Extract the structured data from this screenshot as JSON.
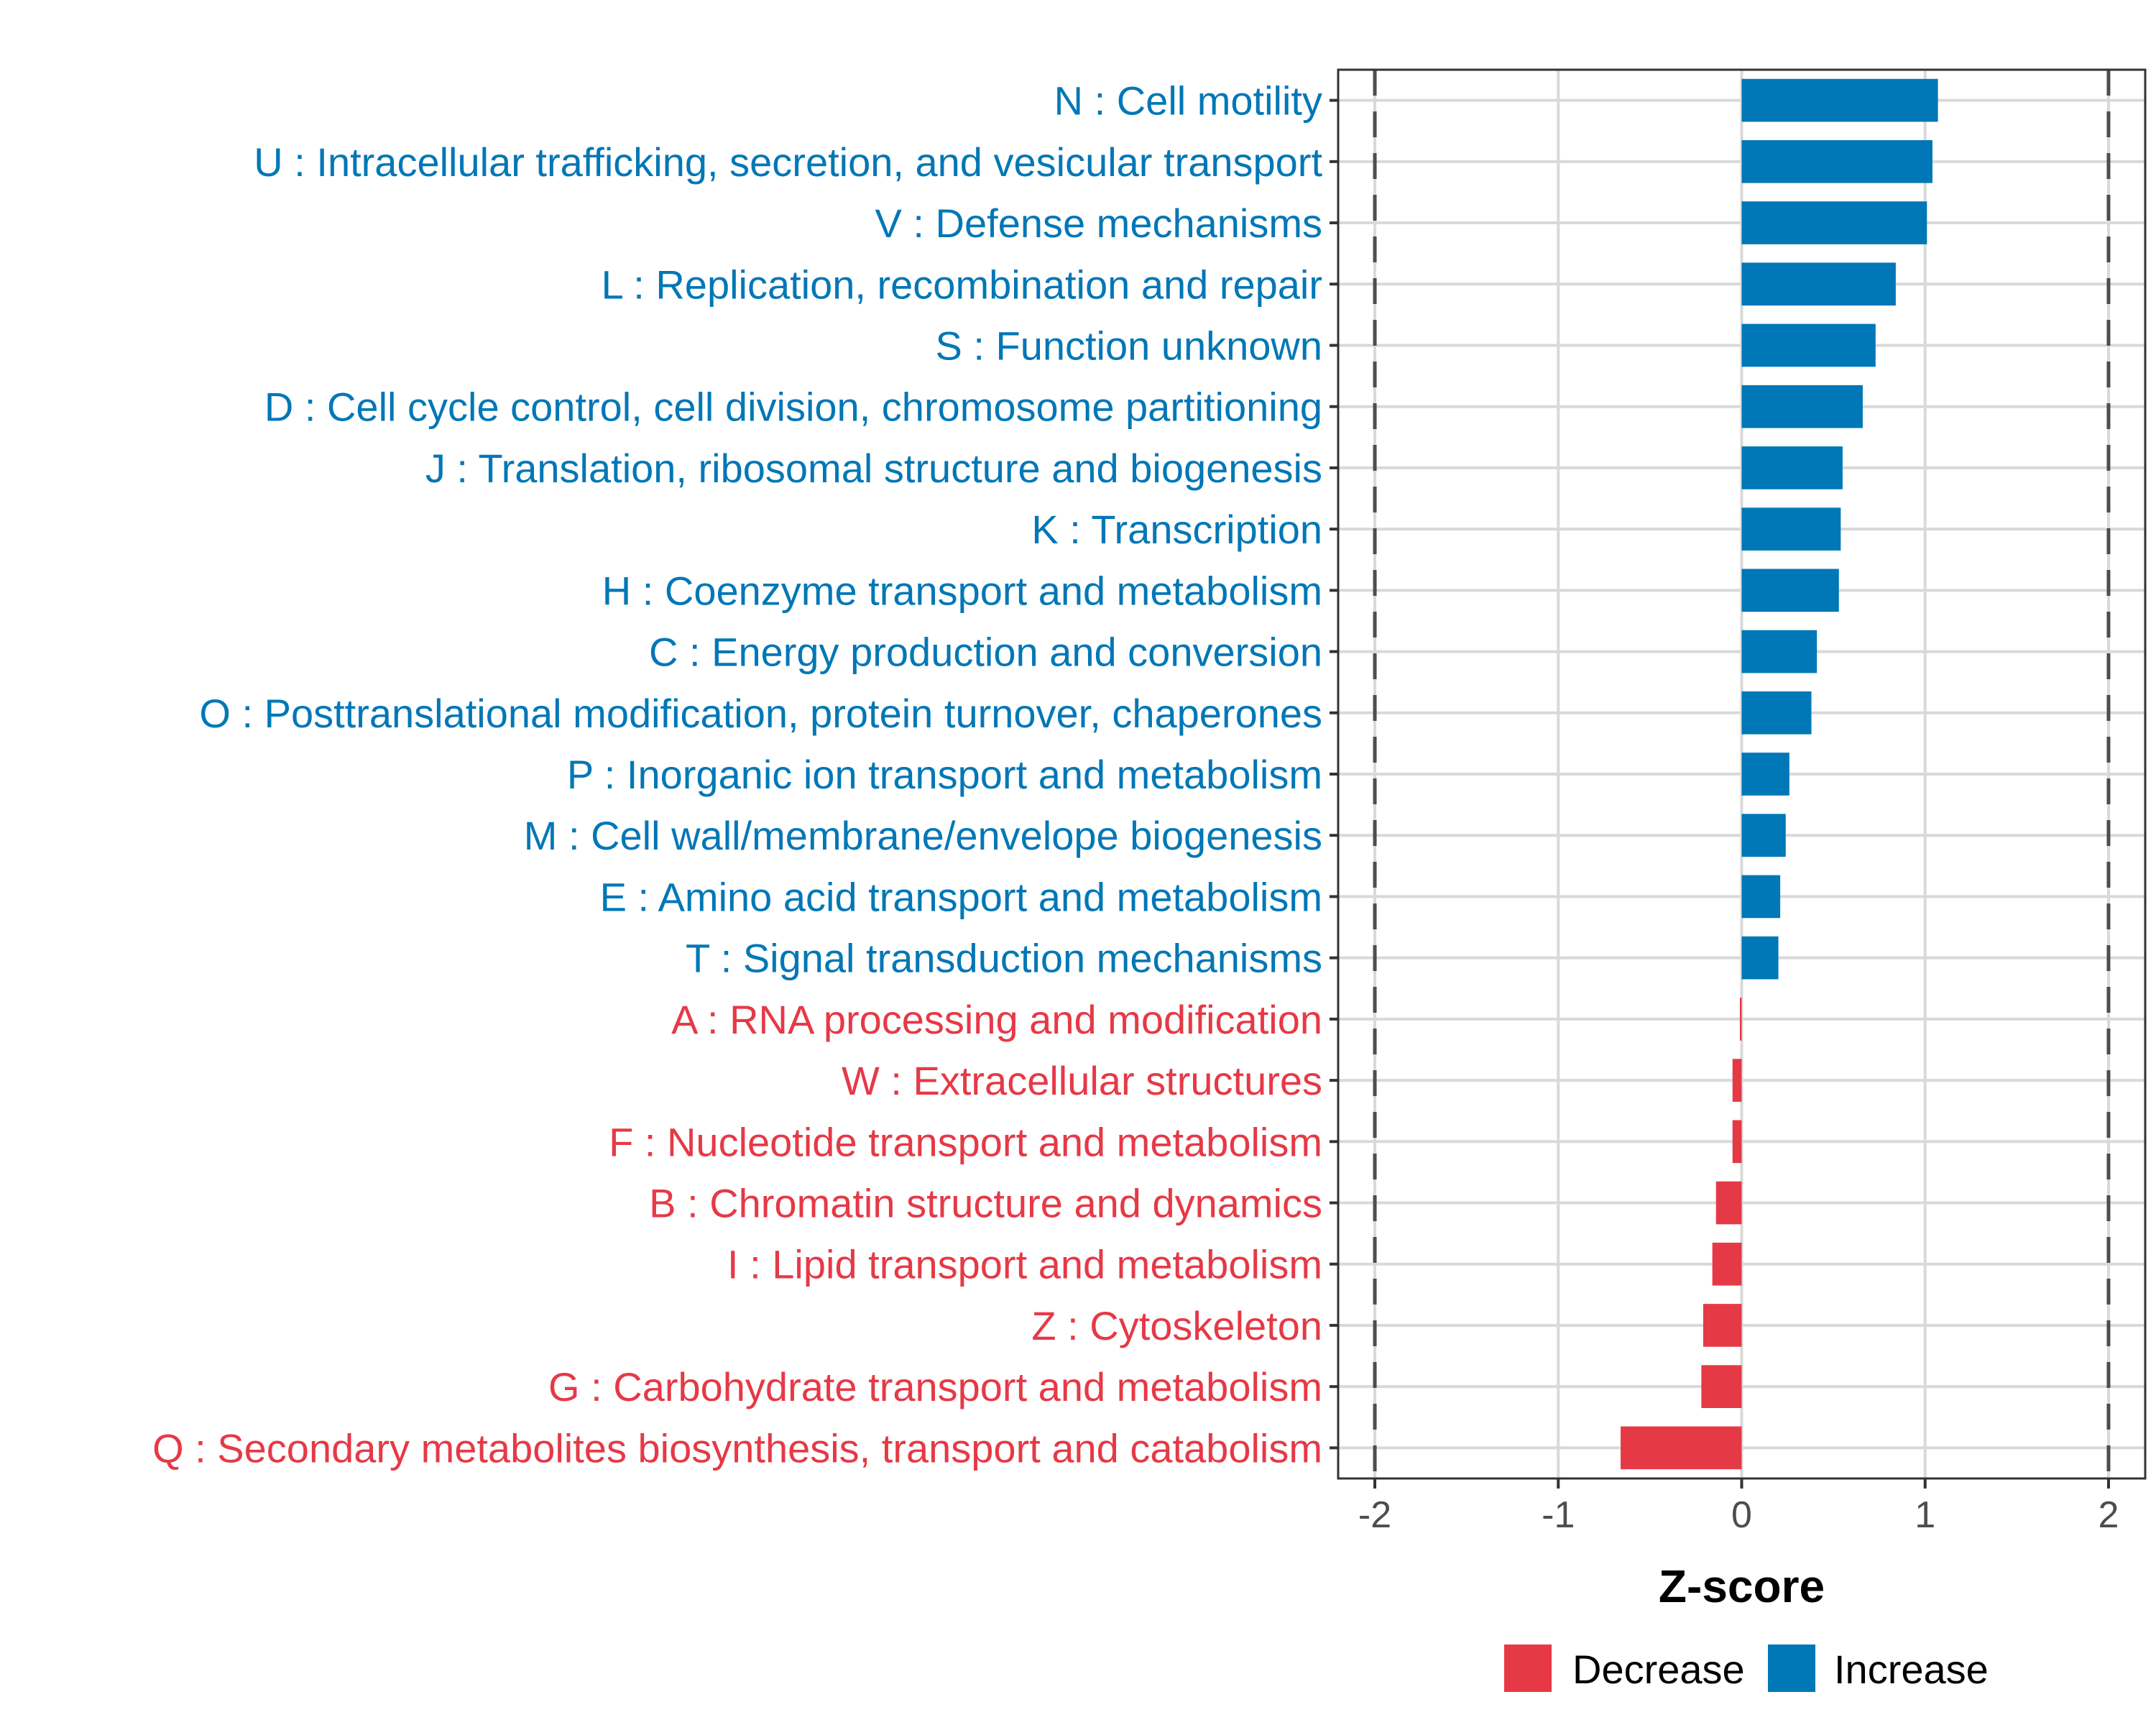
{
  "chart_data": {
    "type": "bar",
    "orientation": "horizontal",
    "title": "",
    "xlabel": "Z-score",
    "ylabel": "",
    "xlim": [
      -2.2,
      2.2
    ],
    "x_ticks": [
      "-2",
      "-1",
      "0",
      "1",
      "2"
    ],
    "x_tick_values": [
      -2,
      -1,
      0,
      1,
      2
    ],
    "reference_lines": [
      -2,
      2
    ],
    "reference_line_style": "dashed",
    "grid": true,
    "categories": [
      "N : Cell motility",
      "U : Intracellular trafficking, secretion, and vesicular transport",
      "V : Defense mechanisms",
      "L : Replication, recombination and repair",
      "S : Function unknown",
      "D : Cell cycle control, cell division, chromosome partitioning",
      "J : Translation, ribosomal structure and biogenesis",
      "K : Transcription",
      "H : Coenzyme transport and metabolism",
      "C : Energy production and conversion",
      "O : Posttranslational modification, protein turnover, chaperones",
      "P : Inorganic ion transport and metabolism",
      "M : Cell wall/membrane/envelope biogenesis",
      "E : Amino acid transport and metabolism",
      "T : Signal transduction mechanisms",
      "A : RNA processing and modification",
      "W : Extracellular structures",
      "F : Nucleotide transport and metabolism",
      "B : Chromatin structure and dynamics",
      "I : Lipid transport and metabolism",
      "Z : Cytoskeleton",
      "G : Carbohydrate transport and metabolism",
      "Q : Secondary metabolites biosynthesis, transport and catabolism"
    ],
    "values": [
      1.07,
      1.04,
      1.01,
      0.84,
      0.73,
      0.66,
      0.55,
      0.54,
      0.53,
      0.41,
      0.38,
      0.26,
      0.24,
      0.21,
      0.2,
      -0.01,
      -0.05,
      -0.05,
      -0.14,
      -0.16,
      -0.21,
      -0.22,
      -0.66
    ],
    "groups": [
      "Increase",
      "Increase",
      "Increase",
      "Increase",
      "Increase",
      "Increase",
      "Increase",
      "Increase",
      "Increase",
      "Increase",
      "Increase",
      "Increase",
      "Increase",
      "Increase",
      "Increase",
      "Decrease",
      "Decrease",
      "Decrease",
      "Decrease",
      "Decrease",
      "Decrease",
      "Decrease",
      "Decrease"
    ],
    "legend": {
      "position": "bottom",
      "entries": [
        {
          "label": "Decrease",
          "color": "#E63946"
        },
        {
          "label": "Increase",
          "color": "#0077B6"
        }
      ]
    },
    "colors": {
      "Increase": "#0077B6",
      "Decrease": "#E63946"
    }
  }
}
